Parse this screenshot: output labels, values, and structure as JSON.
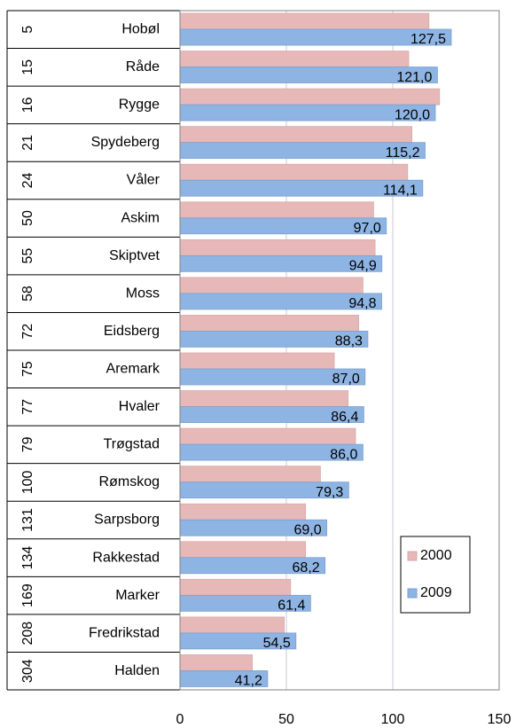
{
  "chart_data": {
    "type": "bar",
    "orientation": "horizontal",
    "rank_labels": [
      "5",
      "15",
      "16",
      "21",
      "24",
      "50",
      "55",
      "58",
      "72",
      "75",
      "77",
      "79",
      "100",
      "131",
      "134",
      "169",
      "208",
      "304"
    ],
    "categories": [
      "Hobøl",
      "Råde",
      "Rygge",
      "Spydeberg",
      "Våler",
      "Askim",
      "Skiptvet",
      "Moss",
      "Eidsberg",
      "Aremark",
      "Hvaler",
      "Trøgstad",
      "Rømskog",
      "Sarpsborg",
      "Rakkestad",
      "Marker",
      "Fredrikstad",
      "Halden"
    ],
    "series": [
      {
        "name": "2000",
        "color": "#e6b9b8",
        "values": [
          117,
          107.5,
          122,
          109,
          107,
          91,
          91.7,
          86,
          84,
          72.5,
          79,
          82.5,
          66,
          59,
          59,
          52,
          49,
          34
        ]
      },
      {
        "name": "2009",
        "color": "#8eb4e3",
        "values": [
          127.5,
          121.0,
          120.0,
          115.2,
          114.1,
          97.0,
          94.9,
          94.8,
          88.3,
          87.0,
          86.4,
          86.0,
          79.3,
          69.0,
          68.2,
          61.4,
          54.5,
          41.2
        ],
        "value_labels": [
          "127,5",
          "121,0",
          "120,0",
          "115,2",
          "114,1",
          "97,0",
          "94,9",
          "94,8",
          "88,3",
          "87,0",
          "86,4",
          "86,0",
          "79,3",
          "69,0",
          "68,2",
          "61,4",
          "54,5",
          "41,2"
        ]
      }
    ],
    "xlim": [
      0,
      150
    ],
    "xticks": [
      0,
      50,
      100,
      150
    ],
    "grid": true,
    "legend": "lower right"
  }
}
